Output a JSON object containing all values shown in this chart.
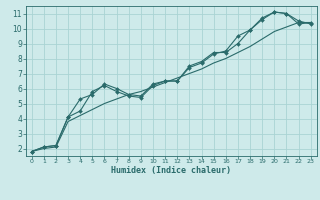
{
  "xlabel": "Humidex (Indice chaleur)",
  "bg_color": "#ceeaea",
  "grid_color": "#aad4d4",
  "line_color": "#2a6b6b",
  "xlim": [
    -0.5,
    23.5
  ],
  "ylim": [
    1.5,
    11.5
  ],
  "xticks": [
    0,
    1,
    2,
    3,
    4,
    5,
    6,
    7,
    8,
    9,
    10,
    11,
    12,
    13,
    14,
    15,
    16,
    17,
    18,
    19,
    20,
    21,
    22,
    23
  ],
  "yticks": [
    2,
    3,
    4,
    5,
    6,
    7,
    8,
    9,
    10,
    11
  ],
  "line1_x": [
    0,
    1,
    2,
    3,
    4,
    5,
    6,
    7,
    8,
    9,
    10,
    11,
    12,
    13,
    14,
    15,
    16,
    17,
    18,
    19,
    20,
    21,
    22,
    23
  ],
  "line1_y": [
    1.8,
    2.1,
    2.2,
    4.1,
    5.3,
    5.6,
    6.3,
    6.0,
    5.6,
    5.5,
    6.3,
    6.5,
    6.5,
    7.5,
    7.8,
    8.4,
    8.4,
    9.0,
    9.9,
    10.7,
    11.1,
    11.0,
    10.3,
    10.4
  ],
  "line2_x": [
    0,
    1,
    2,
    3,
    4,
    5,
    6,
    7,
    8,
    9,
    10,
    11,
    12,
    13,
    14,
    15,
    16,
    17,
    18,
    19,
    20,
    21,
    22,
    23
  ],
  "line2_y": [
    1.8,
    2.1,
    2.2,
    4.1,
    4.5,
    5.8,
    6.2,
    5.8,
    5.5,
    5.4,
    6.2,
    6.5,
    6.5,
    7.4,
    7.7,
    8.3,
    8.5,
    9.5,
    9.9,
    10.6,
    11.1,
    11.0,
    10.5,
    10.3
  ],
  "line3_x": [
    0,
    1,
    2,
    3,
    4,
    5,
    6,
    7,
    8,
    9,
    10,
    11,
    12,
    13,
    14,
    15,
    16,
    17,
    18,
    19,
    20,
    21,
    22,
    23
  ],
  "line3_y": [
    1.8,
    2.0,
    2.1,
    3.8,
    4.2,
    4.6,
    5.0,
    5.3,
    5.6,
    5.8,
    6.1,
    6.4,
    6.7,
    7.0,
    7.3,
    7.7,
    8.0,
    8.4,
    8.8,
    9.3,
    9.8,
    10.1,
    10.4,
    10.4
  ]
}
